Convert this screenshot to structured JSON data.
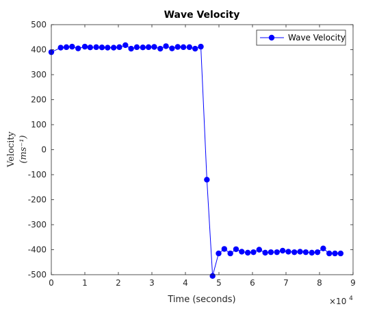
{
  "chart_data": {
    "type": "line",
    "title": "Wave Velocity",
    "xlabel": "Time (seconds)",
    "x_exponent_label": "×10",
    "x_exponent_power": "4",
    "ylabel_line1": "Velocity",
    "ylabel_line2": "(ms⁻¹)",
    "xlim": [
      0,
      90000
    ],
    "ylim": [
      -500,
      500
    ],
    "x_ticks": [
      0,
      10000,
      20000,
      30000,
      40000,
      50000,
      60000,
      70000,
      80000,
      90000
    ],
    "x_tick_labels": [
      "0",
      "1",
      "2",
      "3",
      "4",
      "5",
      "6",
      "7",
      "8",
      "9"
    ],
    "y_ticks": [
      -500,
      -400,
      -300,
      -200,
      -100,
      0,
      100,
      200,
      300,
      400,
      500
    ],
    "y_tick_labels": [
      "-500",
      "-400",
      "-300",
      "-200",
      "-100",
      "0",
      "100",
      "200",
      "300",
      "400",
      "500"
    ],
    "grid": false,
    "legend_position": "top-right",
    "series": [
      {
        "name": "Wave Velocity",
        "color": "#0000ff",
        "marker": "circle",
        "x": [
          0,
          2800,
          4500,
          6200,
          8000,
          10000,
          11600,
          13400,
          15100,
          16800,
          18600,
          20300,
          22100,
          23800,
          25500,
          27300,
          29000,
          30700,
          32500,
          34200,
          36000,
          37700,
          39400,
          41200,
          42900,
          44600,
          46400,
          48100,
          49900,
          51600,
          53400,
          55100,
          56800,
          58600,
          60300,
          62000,
          63800,
          65500,
          67300,
          69000,
          70700,
          72500,
          74200,
          75900,
          77700,
          79400,
          81100,
          82900,
          84600,
          86300
        ],
        "y": [
          390,
          408,
          410,
          412,
          405,
          412,
          409,
          410,
          409,
          408,
          408,
          410,
          418,
          404,
          410,
          409,
          410,
          411,
          404,
          414,
          405,
          411,
          410,
          410,
          404,
          412,
          -120,
          -505,
          -415,
          -397,
          -415,
          -398,
          -408,
          -412,
          -410,
          -400,
          -412,
          -410,
          -410,
          -404,
          -408,
          -410,
          -408,
          -410,
          -412,
          -410,
          -395,
          -415,
          -415,
          -415
        ]
      }
    ]
  }
}
